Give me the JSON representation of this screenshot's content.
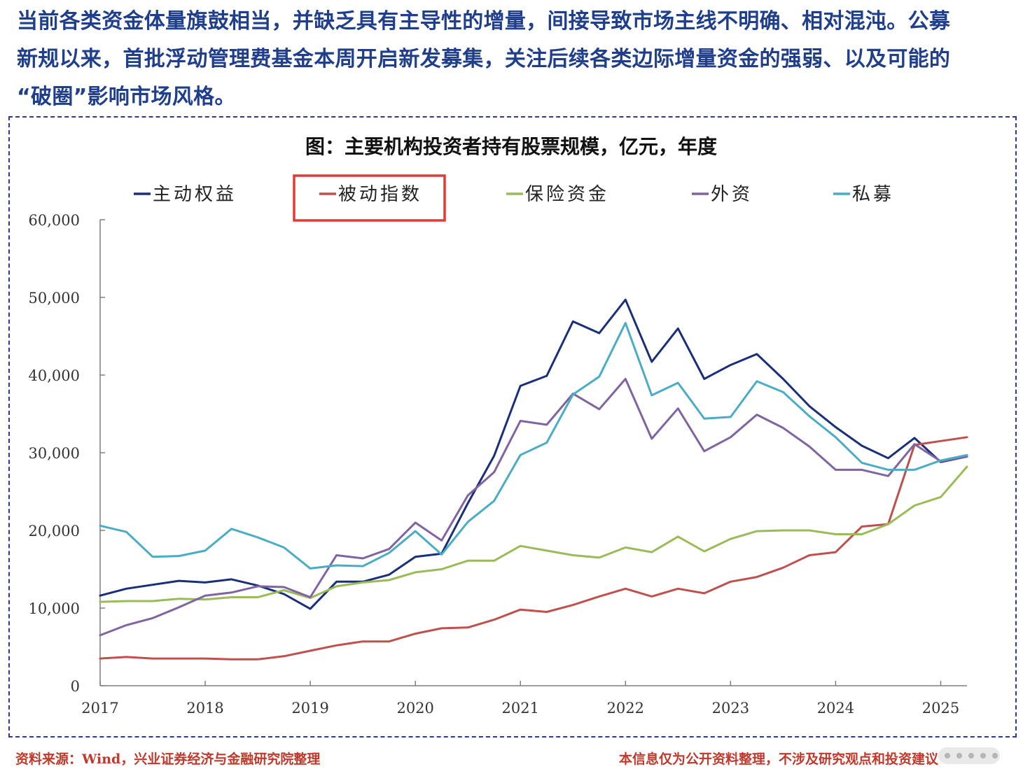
{
  "headline": {
    "line1": "当前各类资金体量旗鼓相当，并缺乏具有主导性的增量，间接导致市场主线不明确、相对混沌。公募",
    "line2": "新规以来，首批浮动管理费基金本周开启新发募集，关注后续各类边际增量资金的强弱、以及可能的",
    "line3": "“破圈”影响市场风格。",
    "color": "#1f3f8c"
  },
  "footer": {
    "source": "资料来源：Wind，兴业证券经济与金融研究院整理",
    "disclaimer": "本信息仅为公开资料整理，不涉及研究观点和投资建议",
    "color": "#c0392b"
  },
  "highlight": {
    "target_series": "被动指数",
    "color": "#e53935"
  },
  "chart_data": {
    "type": "line",
    "title": "图：主要机构投资者持有股票规模，亿元，年度",
    "xlabel": "",
    "ylabel": "",
    "xlim": [
      2017,
      2025.25
    ],
    "ylim": [
      0,
      60000
    ],
    "x_ticks": [
      "2017",
      "2018",
      "2019",
      "2020",
      "2021",
      "2022",
      "2023",
      "2024",
      "2025"
    ],
    "y_ticks": [
      "0",
      "10,000",
      "20,000",
      "30,000",
      "40,000",
      "50,000",
      "60,000"
    ],
    "legend_position": "top",
    "grid": false,
    "x": [
      2017.0,
      2017.25,
      2017.5,
      2017.75,
      2018.0,
      2018.25,
      2018.5,
      2018.75,
      2019.0,
      2019.25,
      2019.5,
      2019.75,
      2020.0,
      2020.25,
      2020.5,
      2020.75,
      2021.0,
      2021.25,
      2021.5,
      2021.75,
      2022.0,
      2022.25,
      2022.5,
      2022.75,
      2023.0,
      2023.25,
      2023.5,
      2023.75,
      2024.0,
      2024.25,
      2024.5,
      2024.75,
      2025.0,
      2025.25
    ],
    "series": [
      {
        "name": "主动权益",
        "color": "#1a2f7a",
        "values": [
          11600,
          12500,
          13000,
          13500,
          13300,
          13700,
          12900,
          11800,
          9900,
          13400,
          13400,
          14300,
          16600,
          17000,
          23500,
          29600,
          38600,
          39900,
          46900,
          45400,
          49700,
          41700,
          46000,
          39500,
          41300,
          42700,
          39500,
          36000,
          33300,
          30900,
          29300,
          31900,
          28800,
          29500
        ]
      },
      {
        "name": "被动指数",
        "color": "#c0504d",
        "values": [
          3500,
          3700,
          3500,
          3500,
          3500,
          3400,
          3400,
          3800,
          4500,
          5200,
          5700,
          5700,
          6700,
          7400,
          7500,
          8500,
          9800,
          9500,
          10400,
          11500,
          12500,
          11500,
          12500,
          11900,
          13400,
          14000,
          15200,
          16800,
          17200,
          20500,
          20800,
          31000,
          31500,
          32000
        ]
      },
      {
        "name": "保险资金",
        "color": "#9bbb59",
        "values": [
          10800,
          10900,
          10900,
          11200,
          11100,
          11400,
          11400,
          12300,
          11300,
          12800,
          13300,
          13600,
          14600,
          15000,
          16100,
          16100,
          18000,
          17400,
          16800,
          16500,
          17800,
          17200,
          19200,
          17300,
          18900,
          19900,
          20000,
          20000,
          19500,
          19500,
          20800,
          23200,
          24300,
          28200
        ]
      },
      {
        "name": "外资",
        "color": "#8064a2",
        "values": [
          6500,
          7800,
          8700,
          10100,
          11600,
          12000,
          12800,
          12700,
          11400,
          16800,
          16400,
          17600,
          21000,
          18700,
          24500,
          27500,
          34100,
          33600,
          37600,
          35600,
          39500,
          31800,
          35700,
          30200,
          32000,
          34900,
          33200,
          30800,
          27800,
          27800,
          27000,
          31100,
          28900,
          29500
        ]
      },
      {
        "name": "私募",
        "color": "#4bacc6",
        "values": [
          20600,
          19800,
          16600,
          16700,
          17400,
          20200,
          19100,
          17800,
          15100,
          15500,
          15400,
          17100,
          19900,
          16900,
          21100,
          23800,
          29700,
          31300,
          37500,
          39800,
          46700,
          37400,
          39000,
          34400,
          34600,
          39200,
          37800,
          34700,
          32000,
          28700,
          27800,
          27800,
          29000,
          29700
        ]
      }
    ]
  }
}
